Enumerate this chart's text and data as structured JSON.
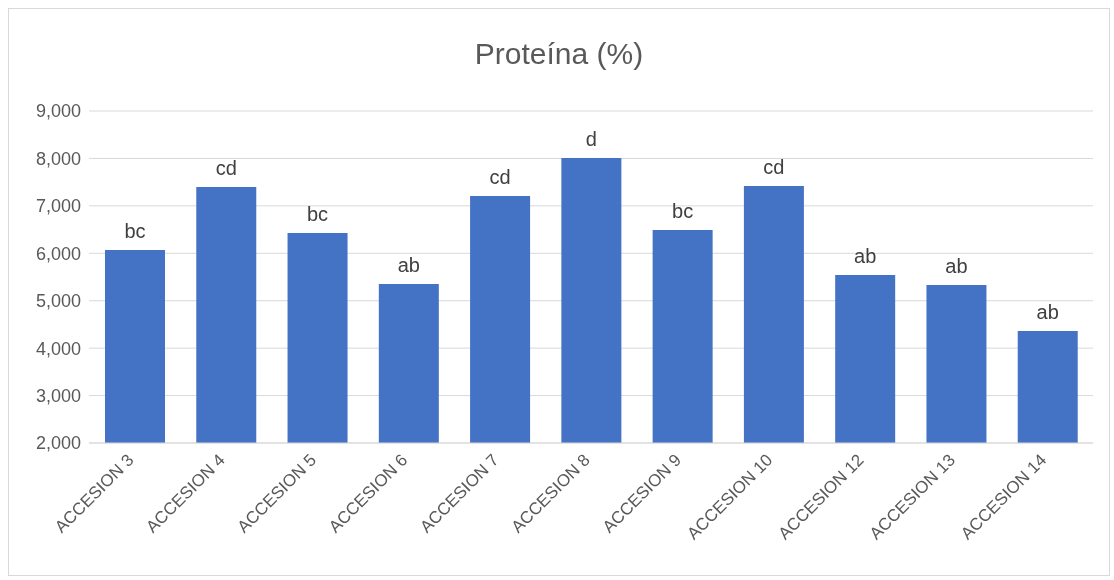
{
  "chart_data": {
    "type": "bar",
    "title": "Proteína (%)",
    "categories": [
      "ACCESION 3",
      "ACCESION 4",
      "ACCESION 5",
      "ACCESION 6",
      "ACCESION 7",
      "ACCESION 8",
      "ACCESION 9",
      "ACCESION 10",
      "ACCESION 12",
      "ACCESION 13",
      "ACCESION 14"
    ],
    "values": [
      6070,
      7400,
      6430,
      5350,
      7210,
      8010,
      6490,
      7420,
      5540,
      5330,
      4360
    ],
    "value_labels": [
      "bc",
      "cd",
      "bc",
      "ab",
      "cd",
      "d",
      "bc",
      "cd",
      "ab",
      "ab",
      "ab"
    ],
    "color": "#4472c4",
    "ylim": [
      2000,
      9000
    ],
    "yticks": [
      {
        "value": 2000,
        "label": "2,000"
      },
      {
        "value": 3000,
        "label": "3,000"
      },
      {
        "value": 4000,
        "label": "4,000"
      },
      {
        "value": 5000,
        "label": "5,000"
      },
      {
        "value": 6000,
        "label": "6,000"
      },
      {
        "value": 7000,
        "label": "7,000"
      },
      {
        "value": 8000,
        "label": "8,000"
      },
      {
        "value": 9000,
        "label": "9,000"
      }
    ],
    "grid": "y"
  }
}
